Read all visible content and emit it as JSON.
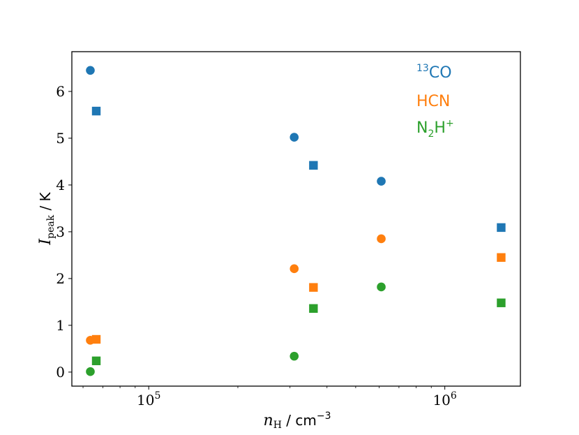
{
  "chart_data": {
    "type": "scatter",
    "x_scale": "log",
    "xlim": [
      55000,
      1800000
    ],
    "ylim": [
      -0.3,
      6.85
    ],
    "x_ticks": [
      {
        "value": 100000,
        "base": "10",
        "exp": "5"
      },
      {
        "value": 1000000,
        "base": "10",
        "exp": "6"
      }
    ],
    "y_ticks": [
      0,
      1,
      2,
      3,
      4,
      5,
      6
    ],
    "xlabel": {
      "var": "n",
      "sub": "H",
      "unit": " / cm",
      "exp": "−3"
    },
    "ylabel": {
      "var": "I",
      "sub": "peak",
      "unit": " / K"
    },
    "legend": {
      "placement": "top-right",
      "entries": [
        {
          "pre": "",
          "sup": "13",
          "main": "CO",
          "sub": "",
          "post_sup": "",
          "color": "#1f77b4"
        },
        {
          "pre": "",
          "sup": "",
          "main": "HCN",
          "sub": "",
          "post_sup": "",
          "color": "#ff7f0e"
        },
        {
          "pre": "",
          "sup": "",
          "main": "N",
          "sub": "2",
          "tail": "H",
          "post_sup": "+",
          "color": "#2ca02c"
        }
      ]
    },
    "series": [
      {
        "color": "#1f77b4",
        "marker": "circle",
        "points": [
          [
            63500,
            6.45
          ],
          [
            310000,
            5.02
          ],
          [
            610000,
            4.08
          ]
        ]
      },
      {
        "color": "#1f77b4",
        "marker": "square",
        "points": [
          [
            66500,
            5.58
          ],
          [
            360000,
            4.42
          ],
          [
            1550000,
            3.09
          ]
        ]
      },
      {
        "color": "#ff7f0e",
        "marker": "circle",
        "points": [
          [
            63500,
            0.68
          ],
          [
            310000,
            2.21
          ],
          [
            610000,
            2.85
          ]
        ]
      },
      {
        "color": "#ff7f0e",
        "marker": "square",
        "points": [
          [
            66500,
            0.7
          ],
          [
            360000,
            1.81
          ],
          [
            1550000,
            2.45
          ]
        ]
      },
      {
        "color": "#2ca02c",
        "marker": "circle",
        "points": [
          [
            63500,
            0.01
          ],
          [
            310000,
            0.34
          ],
          [
            610000,
            1.82
          ]
        ]
      },
      {
        "color": "#2ca02c",
        "marker": "square",
        "points": [
          [
            66500,
            0.24
          ],
          [
            360000,
            1.36
          ],
          [
            1550000,
            1.48
          ]
        ]
      }
    ]
  }
}
